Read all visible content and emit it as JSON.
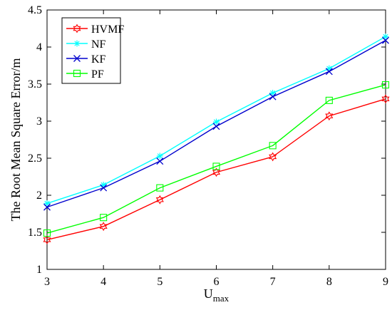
{
  "chart_data": {
    "type": "line",
    "x": [
      3,
      4,
      5,
      6,
      7,
      8,
      9
    ],
    "series": [
      {
        "name": "HVMF",
        "color": "#ff0000",
        "marker": "hexagram",
        "values": [
          1.4,
          1.58,
          1.94,
          2.31,
          2.52,
          3.07,
          3.3
        ]
      },
      {
        "name": "NF",
        "color": "#00ffff",
        "marker": "asterisk",
        "values": [
          1.89,
          2.14,
          2.53,
          2.99,
          3.38,
          3.71,
          4.14
        ]
      },
      {
        "name": "KF",
        "color": "#0000cd",
        "marker": "x",
        "values": [
          1.84,
          2.1,
          2.46,
          2.93,
          3.33,
          3.67,
          4.09
        ]
      },
      {
        "name": "PF",
        "color": "#00ff00",
        "marker": "square",
        "values": [
          1.49,
          1.7,
          2.1,
          2.39,
          2.67,
          3.28,
          3.49
        ]
      }
    ],
    "xlabel": "U",
    "xlabel_sub": "max",
    "ylabel": "The Root Mean Square Error/m",
    "xlim": [
      3,
      9
    ],
    "ylim": [
      1,
      4.5
    ],
    "xticks": [
      "3",
      "4",
      "5",
      "6",
      "7",
      "8",
      "9"
    ],
    "yticks": [
      "1",
      "1.5",
      "2",
      "2.5",
      "3",
      "3.5",
      "4",
      "4.5"
    ],
    "grid": false,
    "legend_position": "top-left"
  }
}
